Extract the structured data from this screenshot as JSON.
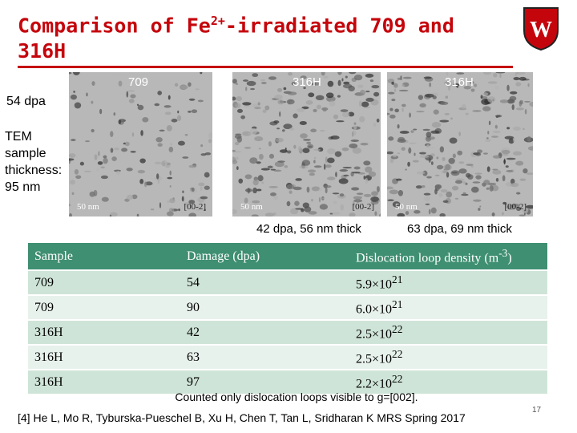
{
  "header": {
    "title_parts": [
      "Comparison of Fe",
      "2+",
      "-irradiated 709 and",
      "316H"
    ],
    "logo": "W"
  },
  "images": [
    {
      "label": "709",
      "scale": "50 nm",
      "direction": "[00-2]"
    },
    {
      "label": "316H",
      "scale": "50 nm",
      "direction": "[00-2]",
      "caption": "42 dpa, 56 nm thick"
    },
    {
      "label": "316H",
      "scale": "50 nm",
      "direction": "[00-2]",
      "caption": "63 dpa, 69 nm thick"
    }
  ],
  "side_labels": {
    "dose": "54 dpa",
    "thickness_lines": [
      "TEM",
      "sample",
      "thickness:",
      "95 nm"
    ]
  },
  "table": {
    "header": [
      "Sample",
      "Damage (dpa)",
      {
        "base": "Dislocation loop density (m",
        "exp": "-3",
        "tail": ")"
      }
    ],
    "rows": [
      [
        "709",
        "54",
        {
          "base": "5.9×10",
          "exp": "21"
        }
      ],
      [
        "709",
        "90",
        {
          "base": "6.0×10",
          "exp": "21"
        }
      ],
      [
        "316H",
        "42",
        {
          "base": "2.5×10",
          "exp": "22"
        }
      ],
      [
        "316H",
        "63",
        {
          "base": "2.5×10",
          "exp": "22"
        }
      ],
      [
        "316H",
        "97",
        {
          "base": "2.2×10",
          "exp": "22"
        }
      ]
    ]
  },
  "note": "Counted only dislocation loops visible to g=[002].",
  "reference": "[4] He L, Mo R, Tyburska-Pueschel B, Xu H, Chen T, Tan L, Sridharan K MRS Spring 2017",
  "page_number": "17"
}
